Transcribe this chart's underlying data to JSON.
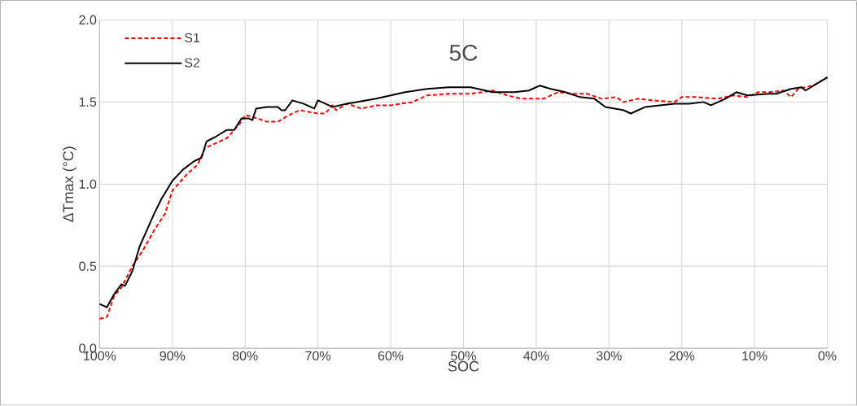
{
  "chart_data": {
    "type": "line",
    "xlabel": "SOC",
    "ylabel": "ΔTmax (°C)",
    "annotations": [
      "5C"
    ],
    "xlim": [
      100,
      0
    ],
    "ylim": [
      0,
      2
    ],
    "xticks": [
      {
        "value": 100,
        "label": "100%"
      },
      {
        "value": 90,
        "label": "90%"
      },
      {
        "value": 80,
        "label": "80%"
      },
      {
        "value": 70,
        "label": "70%"
      },
      {
        "value": 60,
        "label": "60%"
      },
      {
        "value": 50,
        "label": "50%"
      },
      {
        "value": 40,
        "label": "40%"
      },
      {
        "value": 30,
        "label": "30%"
      },
      {
        "value": 20,
        "label": "20%"
      },
      {
        "value": 10,
        "label": "10%"
      },
      {
        "value": 0,
        "label": "0%"
      }
    ],
    "yticks": [
      {
        "value": 0,
        "label": "0.0"
      },
      0.5,
      {
        "value": 1,
        "label": "1.0"
      },
      1.5,
      {
        "value": 2,
        "label": "2.0"
      }
    ],
    "grid": true,
    "legend": "top left",
    "marker": "none",
    "series": [
      {
        "name": "S1",
        "color": "#ff0000",
        "line_style": "dashed",
        "x": [
          100,
          99,
          98,
          97,
          95.5,
          94,
          92.5,
          91,
          90,
          88,
          86.5,
          85.5,
          84,
          82.5,
          80.5,
          80,
          79,
          77,
          75.5,
          74,
          72.5,
          70,
          69,
          68,
          67.5,
          66,
          64,
          62,
          60,
          57,
          55,
          52,
          49,
          46,
          44,
          42,
          39,
          37,
          35,
          33,
          31,
          29,
          28,
          26,
          24,
          21,
          20,
          18,
          15,
          13,
          11,
          9.5,
          8,
          6,
          5,
          4,
          2,
          0
        ],
        "values": [
          0.18,
          0.19,
          0.32,
          0.37,
          0.5,
          0.6,
          0.72,
          0.82,
          0.96,
          1.06,
          1.12,
          1.22,
          1.25,
          1.28,
          1.38,
          1.42,
          1.41,
          1.38,
          1.38,
          1.42,
          1.45,
          1.43,
          1.43,
          1.48,
          1.45,
          1.49,
          1.46,
          1.48,
          1.48,
          1.5,
          1.54,
          1.55,
          1.55,
          1.57,
          1.54,
          1.52,
          1.52,
          1.56,
          1.55,
          1.55,
          1.52,
          1.53,
          1.5,
          1.52,
          1.51,
          1.5,
          1.53,
          1.53,
          1.52,
          1.54,
          1.53,
          1.56,
          1.56,
          1.57,
          1.53,
          1.58,
          1.6,
          1.65
        ]
      },
      {
        "name": "S2",
        "color": "#000000",
        "line_style": "solid",
        "x": [
          100,
          99,
          98,
          97,
          96.5,
          95.5,
          94.5,
          93.5,
          92.5,
          91.5,
          90,
          88.5,
          87,
          86,
          85.3,
          84,
          82.5,
          81.5,
          80.5,
          79.5,
          79,
          78.5,
          77,
          75.5,
          75,
          74.5,
          73.5,
          72,
          70.5,
          70,
          68,
          66,
          62,
          58,
          55,
          52,
          49,
          48,
          46,
          43,
          41,
          39.5,
          38,
          36,
          34,
          32,
          30.5,
          28,
          27,
          25,
          23,
          21,
          19,
          17,
          16,
          14,
          12.5,
          11,
          8,
          7,
          5,
          3.5,
          3,
          1.5,
          0
        ],
        "values": [
          0.27,
          0.25,
          0.33,
          0.39,
          0.38,
          0.47,
          0.62,
          0.72,
          0.82,
          0.91,
          1.02,
          1.09,
          1.14,
          1.16,
          1.26,
          1.29,
          1.33,
          1.33,
          1.4,
          1.4,
          1.39,
          1.46,
          1.47,
          1.47,
          1.45,
          1.45,
          1.51,
          1.49,
          1.46,
          1.51,
          1.47,
          1.49,
          1.52,
          1.56,
          1.58,
          1.59,
          1.59,
          1.58,
          1.56,
          1.56,
          1.57,
          1.6,
          1.58,
          1.56,
          1.53,
          1.52,
          1.47,
          1.45,
          1.43,
          1.47,
          1.48,
          1.49,
          1.49,
          1.5,
          1.48,
          1.52,
          1.56,
          1.54,
          1.55,
          1.55,
          1.58,
          1.59,
          1.57,
          1.61,
          1.65
        ]
      }
    ]
  }
}
